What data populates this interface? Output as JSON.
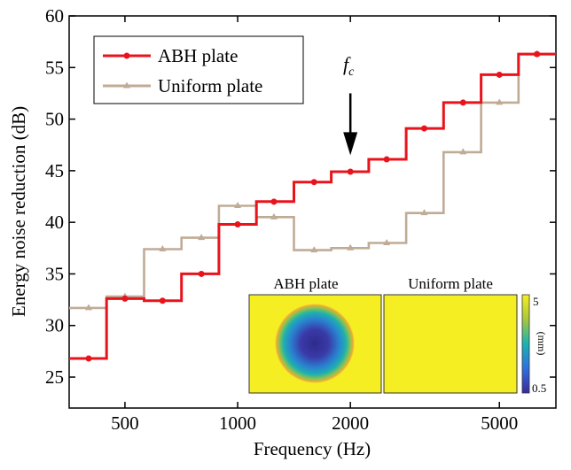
{
  "chart_data": {
    "type": "line",
    "step": true,
    "xscale": "log",
    "xlabel": "Frequency (Hz)",
    "ylabel": "Energy noise reduction (dB)",
    "xlim": [
      354.8,
      7079
    ],
    "ylim": [
      22,
      60
    ],
    "xticks": [
      500,
      1000,
      2000,
      5000
    ],
    "xtick_labels": [
      "500",
      "1000",
      "2000",
      "5000"
    ],
    "yticks": [
      25,
      30,
      35,
      40,
      45,
      50,
      55,
      60
    ],
    "ytick_labels": [
      "25",
      "30",
      "35",
      "40",
      "45",
      "50",
      "55",
      "60"
    ],
    "grid": false,
    "legend_position": "top-left",
    "band_edges": [
      354.8,
      446.7,
      562.3,
      707.9,
      891.3,
      1122,
      1413,
      1778,
      2239,
      2818,
      3548,
      4467,
      5623,
      7079
    ],
    "x": [
      400,
      500,
      630,
      800,
      1000,
      1250,
      1600,
      2000,
      2500,
      3150,
      4000,
      5000,
      6300
    ],
    "series": [
      {
        "name": "ABH plate",
        "color": "#e8141c",
        "marker": "circle",
        "values": [
          26.8,
          32.6,
          32.4,
          35.0,
          39.8,
          42.0,
          43.9,
          44.9,
          46.1,
          49.1,
          51.6,
          54.3,
          56.3
        ]
      },
      {
        "name": "Uniform plate",
        "color": "#c0ab96",
        "marker": "triangle",
        "values": [
          31.7,
          32.8,
          37.4,
          38.5,
          41.6,
          40.5,
          37.3,
          37.5,
          38.0,
          40.9,
          46.8,
          51.6,
          56.3
        ]
      }
    ],
    "annotation": {
      "label_main": "f",
      "label_sub": "c",
      "x": 2000,
      "y_tip": 46.5,
      "y_top": 52.5
    },
    "inset": {
      "titles": [
        "ABH plate",
        "Uniform plate"
      ],
      "colorbar_max": "5",
      "colorbar_min": "0.5",
      "colorbar_unit": "(mm)",
      "colors": {
        "plate": "#f5ee22",
        "center": "#3a2a9a",
        "mid": "#1fa3b8",
        "ring": "#f0a83a"
      }
    }
  }
}
